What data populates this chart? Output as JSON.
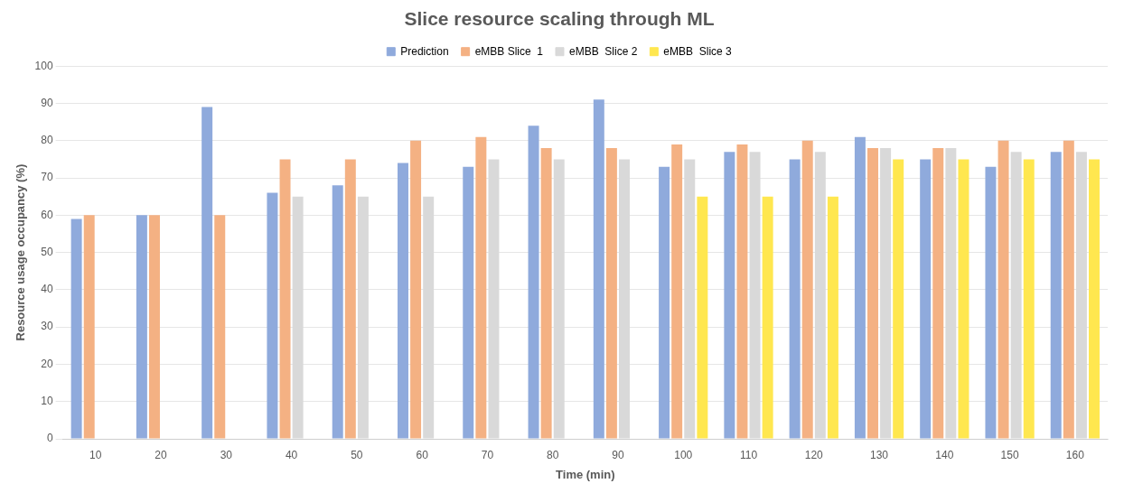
{
  "chart_data": {
    "type": "bar",
    "title": "Slice resource scaling through ML",
    "xlabel": "Time (min)",
    "ylabel": "Resource usage occupancy (%)",
    "categories": [
      "10",
      "20",
      "30",
      "40",
      "50",
      "60",
      "70",
      "80",
      "90",
      "100",
      "110",
      "120",
      "130",
      "140",
      "150",
      "160"
    ],
    "series": [
      {
        "name": "Prediction",
        "color": "#8faadc",
        "values": [
          59,
          60,
          89,
          66,
          68,
          74,
          73,
          84,
          91,
          73,
          77,
          75,
          81,
          75,
          73,
          77
        ]
      },
      {
        "name": "eMBB Slice  1",
        "color": "#f4b183",
        "values": [
          60,
          60,
          60,
          75,
          75,
          80,
          81,
          78,
          78,
          79,
          79,
          80,
          78,
          78,
          80,
          80
        ]
      },
      {
        "name": "eMBB  Slice 2",
        "color": "#d9d9d9",
        "values": [
          null,
          null,
          null,
          65,
          65,
          65,
          75,
          75,
          75,
          75,
          77,
          77,
          78,
          78,
          77,
          77
        ]
      },
      {
        "name": "eMBB  Slice 3",
        "color": "#ffe74f",
        "values": [
          null,
          null,
          null,
          null,
          null,
          null,
          null,
          null,
          null,
          65,
          65,
          65,
          75,
          75,
          75,
          75
        ]
      }
    ],
    "ylim": [
      0,
      100
    ],
    "yticks": [
      0,
      10,
      20,
      30,
      40,
      50,
      60,
      70,
      80,
      90,
      100
    ],
    "grid": "y",
    "legend": "top"
  }
}
